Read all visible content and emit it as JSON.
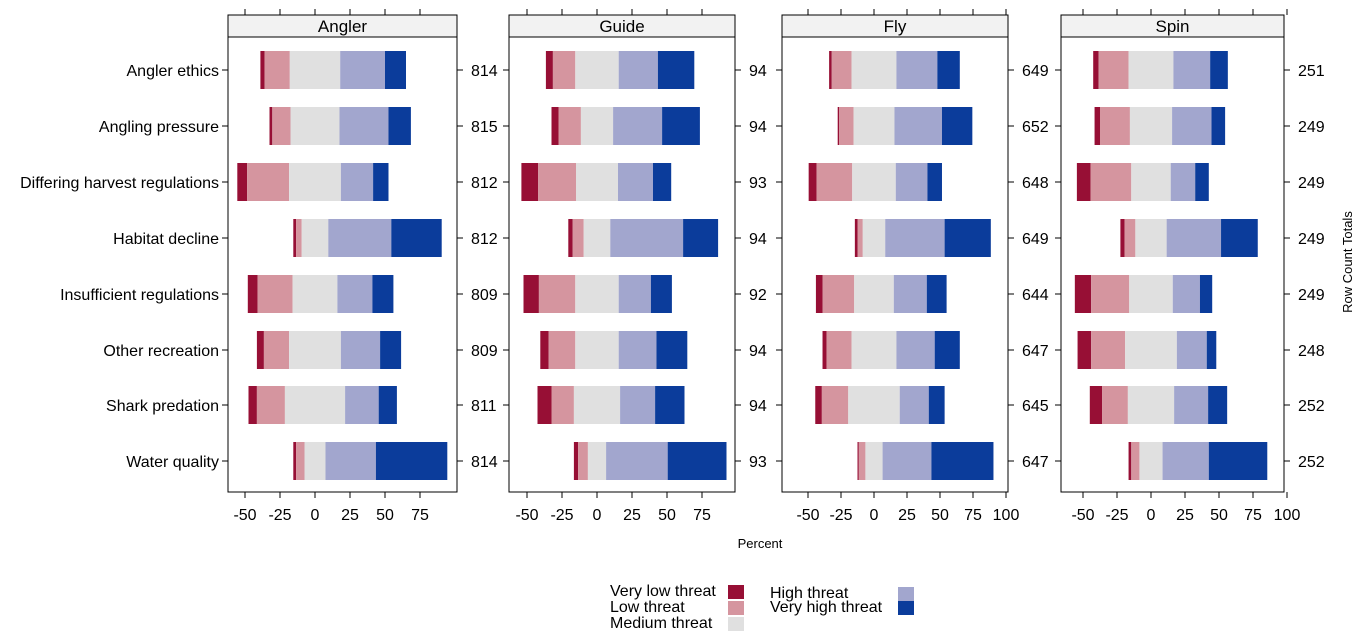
{
  "chart_data": {
    "type": "diverging-stacked-bar",
    "x_label": "Percent",
    "right_axis_label": "Row Count Totals",
    "x_ticks": [
      -50,
      -25,
      0,
      25,
      50,
      75,
      100
    ],
    "categories": [
      "Angler ethics",
      "Angling pressure",
      "Differing harvest regulations",
      "Habitat decline",
      "Insufficient regulations",
      "Other recreation",
      "Shark predation",
      "Water quality"
    ],
    "levels": [
      {
        "name": "Very low threat",
        "color": "#970f35"
      },
      {
        "name": "Low threat",
        "color": "#d5959f"
      },
      {
        "name": "Medium threat",
        "color": "#e0e0e0"
      },
      {
        "name": "High threat",
        "color": "#a2a6ce"
      },
      {
        "name": "Very high threat",
        "color": "#0b3c9b"
      }
    ],
    "panels": [
      {
        "title": "Angler",
        "xlim": [
          -60,
          95
        ],
        "xtick_labels": [
          "-50",
          "-25",
          "0",
          "25",
          "50",
          "75"
        ],
        "totals": [
          814,
          815,
          812,
          812,
          809,
          809,
          811,
          814
        ],
        "values": [
          [
            3,
            18,
            36,
            32,
            15
          ],
          [
            2,
            13,
            35,
            35,
            16
          ],
          [
            7,
            30,
            37,
            23,
            11
          ],
          [
            2,
            4,
            19,
            45,
            36
          ],
          [
            7,
            25,
            32,
            25,
            15
          ],
          [
            5,
            18,
            37,
            28,
            15
          ],
          [
            6,
            20,
            43,
            24,
            13
          ],
          [
            2,
            6,
            15,
            36,
            51
          ]
        ]
      },
      {
        "title": "Guide",
        "xlim": [
          -60,
          95
        ],
        "xtick_labels": [
          "-50",
          "-25",
          "0",
          "25",
          "50",
          "75"
        ],
        "totals": [
          94,
          94,
          93,
          94,
          92,
          94,
          94,
          93
        ],
        "values": [
          [
            5,
            16,
            31,
            28,
            26
          ],
          [
            5,
            16,
            23,
            35,
            27
          ],
          [
            12,
            27,
            30,
            25,
            13
          ],
          [
            3,
            8,
            19,
            52,
            25
          ],
          [
            11,
            26,
            31,
            23,
            15
          ],
          [
            6,
            19,
            31,
            27,
            22
          ],
          [
            10,
            16,
            33,
            25,
            21
          ],
          [
            3,
            7,
            13,
            44,
            42
          ]
        ]
      },
      {
        "title": "Fly",
        "xlim": [
          -60,
          100
        ],
        "xtick_labels": [
          "-50",
          "-25",
          "0",
          "25",
          "50",
          "75",
          "100"
        ],
        "totals": [
          649,
          652,
          648,
          649,
          644,
          647,
          645,
          647
        ],
        "values": [
          [
            2,
            15,
            34,
            31,
            17
          ],
          [
            1,
            11,
            31,
            36,
            23
          ],
          [
            6,
            27,
            33,
            24,
            11
          ],
          [
            2,
            4,
            17,
            45,
            35
          ],
          [
            5,
            24,
            30,
            25,
            15
          ],
          [
            3,
            19,
            34,
            29,
            19
          ],
          [
            5,
            20,
            39,
            22,
            12
          ],
          [
            1,
            5,
            13,
            37,
            47
          ]
        ]
      },
      {
        "title": "Spin",
        "xlim": [
          -60,
          100
        ],
        "xtick_labels": [
          "-50",
          "-25",
          "0",
          "25",
          "50",
          "75",
          "100"
        ],
        "totals": [
          251,
          249,
          249,
          249,
          249,
          248,
          252,
          252
        ],
        "values": [
          [
            4,
            22,
            33,
            27,
            13
          ],
          [
            4,
            22,
            31,
            29,
            10
          ],
          [
            10,
            30,
            29,
            18,
            10
          ],
          [
            3,
            8,
            23,
            40,
            27
          ],
          [
            12,
            28,
            32,
            20,
            9
          ],
          [
            10,
            25,
            38,
            22,
            7
          ],
          [
            9,
            19,
            34,
            25,
            14
          ],
          [
            2,
            6,
            17,
            34,
            43
          ]
        ]
      }
    ]
  }
}
